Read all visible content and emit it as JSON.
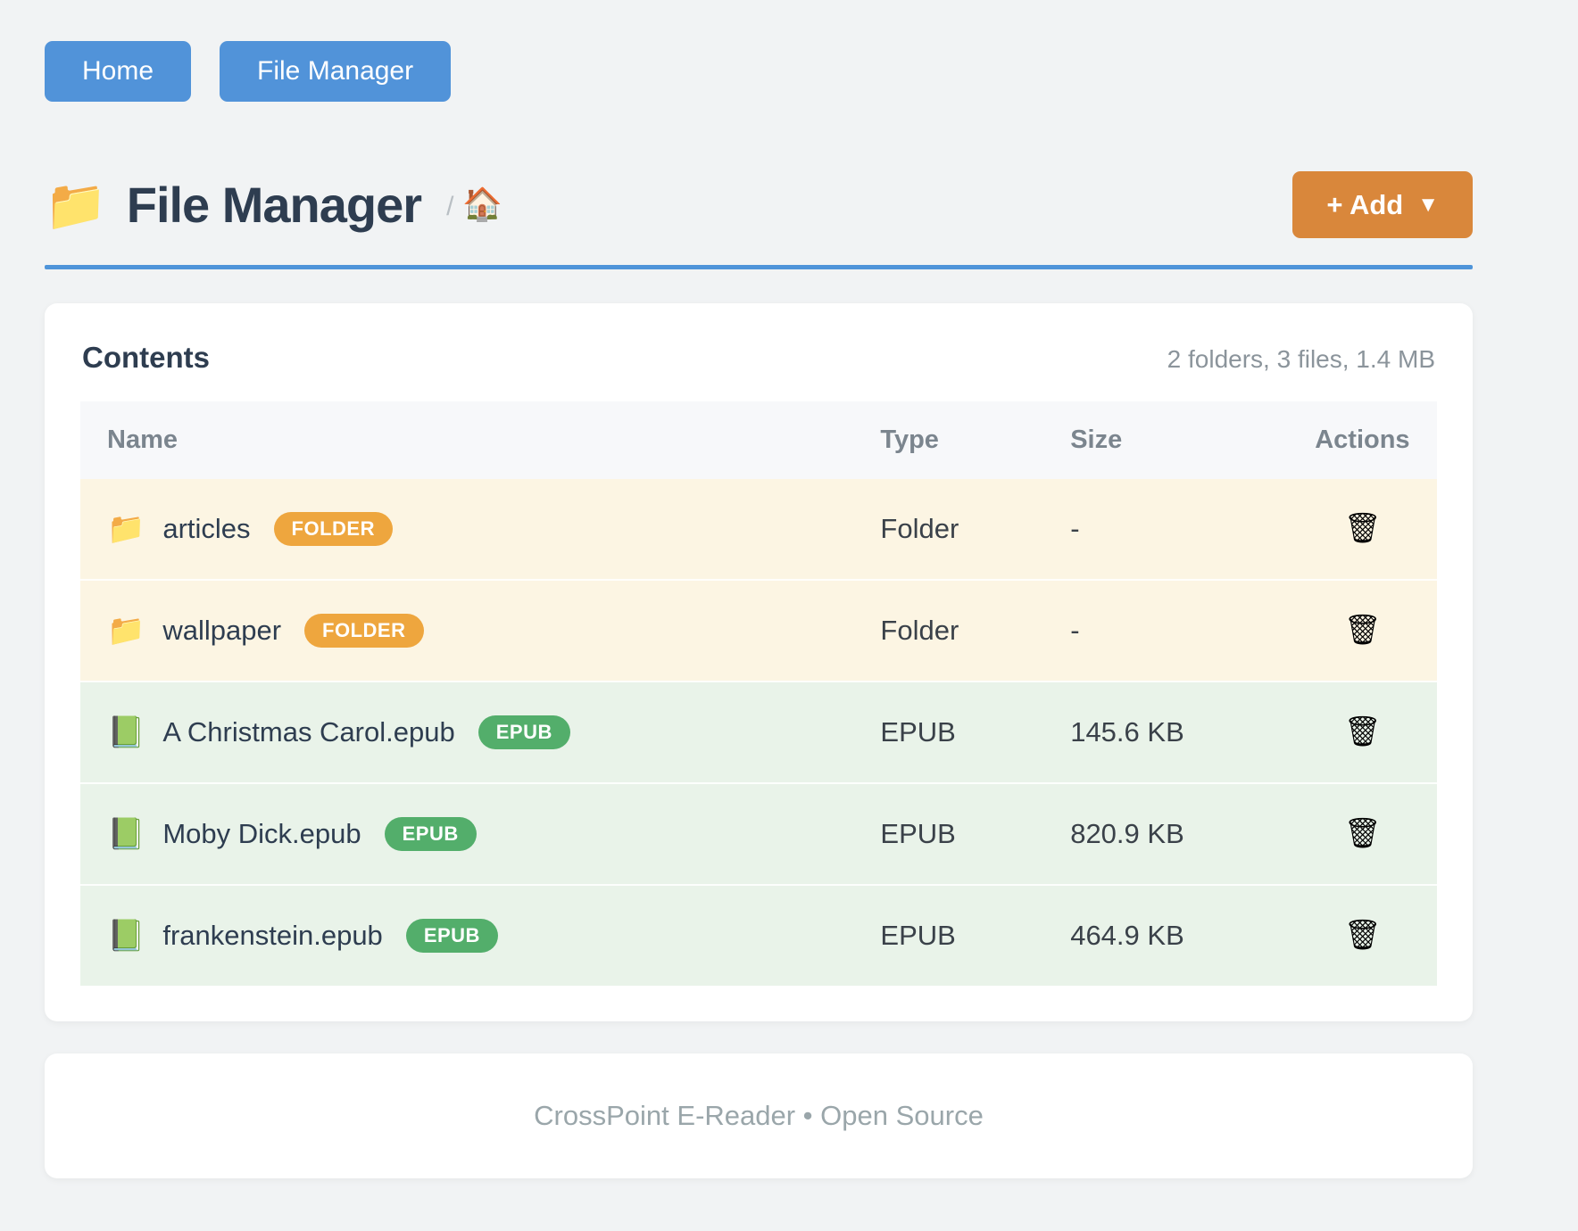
{
  "colors": {
    "page_background": "#f1f3f4",
    "nav_button_blue": "#5193d9",
    "header_rule_blue": "#4f94d9",
    "add_button_orange": "#d9873b",
    "folder_badge_orange": "#eea63e",
    "epub_badge_green": "#53ae6b",
    "folder_row_background": "#fcf5e3",
    "epub_row_background": "#e9f3e9",
    "title_text": "#2e3d50"
  },
  "nav": {
    "home_label": "Home",
    "file_manager_label": "File Manager"
  },
  "header": {
    "title": "File Manager",
    "title_icon": "📁",
    "breadcrumb_separator": "/",
    "breadcrumb_home_icon": "🏠",
    "add_button_label": "+ Add",
    "add_button_caret": "▼"
  },
  "contents_card": {
    "title": "Contents",
    "summary": "2 folders, 3 files, 1.4 MB",
    "table": {
      "columns": {
        "name": "Name",
        "type": "Type",
        "size": "Size",
        "actions": "Actions"
      },
      "action_icon": "🗑",
      "rows": [
        {
          "icon": "📁",
          "icon_name": "folder-icon",
          "name": "articles",
          "badge": "FOLDER",
          "type": "Folder",
          "size": "-"
        },
        {
          "icon": "📁",
          "icon_name": "folder-icon",
          "name": "wallpaper",
          "badge": "FOLDER",
          "type": "Folder",
          "size": "-"
        },
        {
          "icon": "📗",
          "icon_name": "book-icon",
          "name": "A Christmas Carol.epub",
          "badge": "EPUB",
          "type": "EPUB",
          "size": "145.6 KB"
        },
        {
          "icon": "📗",
          "icon_name": "book-icon",
          "name": "Moby Dick.epub",
          "badge": "EPUB",
          "type": "EPUB",
          "size": "820.9 KB"
        },
        {
          "icon": "📗",
          "icon_name": "book-icon",
          "name": "frankenstein.epub",
          "badge": "EPUB",
          "type": "EPUB",
          "size": "464.9 KB"
        }
      ]
    }
  },
  "footer": {
    "text": "CrossPoint E-Reader • Open Source"
  }
}
